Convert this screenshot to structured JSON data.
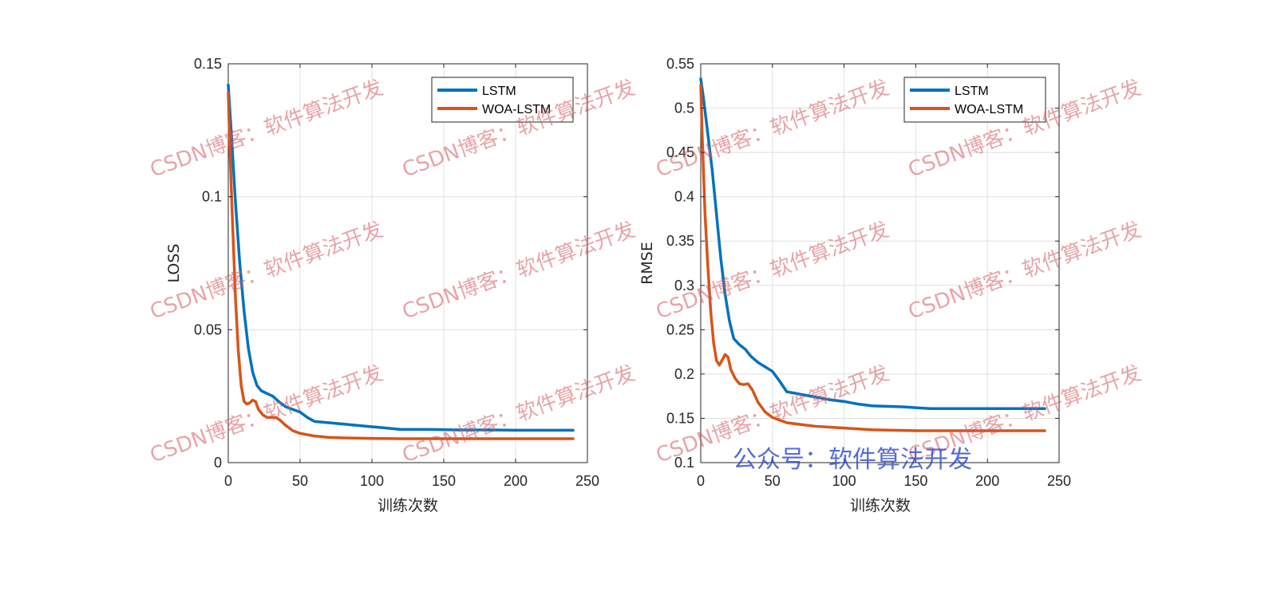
{
  "watermark": {
    "text": "CSDN博客：软件算法开发",
    "footer": "公众号：软件算法开发"
  },
  "colors": {
    "lstm": "#0072BD",
    "woa_lstm": "#D95319",
    "grid": "#dfdfdf",
    "axis": "#262626"
  },
  "chart_data": [
    {
      "type": "line",
      "xlabel": "训练次数",
      "ylabel": "LOSS",
      "xlim": [
        0,
        250
      ],
      "ylim": [
        0,
        0.15
      ],
      "xticks": [
        0,
        50,
        100,
        150,
        200,
        250
      ],
      "yticks": [
        0,
        0.05,
        0.1,
        0.15
      ],
      "xtick_labels": [
        "0",
        "50",
        "100",
        "150",
        "200",
        "250"
      ],
      "ytick_labels": [
        "0",
        "0.05",
        "0.1",
        "0.15"
      ],
      "grid": true,
      "legend_position": "top-right",
      "series": [
        {
          "name": "LSTM",
          "color": "#0072BD",
          "points": [
            [
              0,
              0.142
            ],
            [
              2,
              0.125
            ],
            [
              5,
              0.098
            ],
            [
              8,
              0.075
            ],
            [
              11,
              0.057
            ],
            [
              14,
              0.043
            ],
            [
              17,
              0.034
            ],
            [
              20,
              0.029
            ],
            [
              23,
              0.027
            ],
            [
              27,
              0.026
            ],
            [
              31,
              0.025
            ],
            [
              35,
              0.023
            ],
            [
              40,
              0.021
            ],
            [
              45,
              0.02
            ],
            [
              50,
              0.019
            ],
            [
              55,
              0.017
            ],
            [
              60,
              0.0155
            ],
            [
              70,
              0.015
            ],
            [
              80,
              0.0145
            ],
            [
              90,
              0.014
            ],
            [
              100,
              0.0135
            ],
            [
              110,
              0.013
            ],
            [
              120,
              0.0125
            ],
            [
              140,
              0.0125
            ],
            [
              160,
              0.0123
            ],
            [
              180,
              0.0123
            ],
            [
              200,
              0.0122
            ],
            [
              220,
              0.0122
            ],
            [
              240,
              0.0122
            ]
          ]
        },
        {
          "name": "WOA-LSTM",
          "color": "#D95319",
          "points": [
            [
              0,
              0.139
            ],
            [
              1,
              0.12
            ],
            [
              3,
              0.09
            ],
            [
              5,
              0.062
            ],
            [
              7,
              0.042
            ],
            [
              9,
              0.029
            ],
            [
              11,
              0.023
            ],
            [
              13,
              0.022
            ],
            [
              15,
              0.0225
            ],
            [
              17,
              0.0235
            ],
            [
              19,
              0.023
            ],
            [
              21,
              0.02
            ],
            [
              24,
              0.018
            ],
            [
              27,
              0.017
            ],
            [
              30,
              0.017
            ],
            [
              33,
              0.017
            ],
            [
              36,
              0.016
            ],
            [
              40,
              0.014
            ],
            [
              45,
              0.012
            ],
            [
              50,
              0.011
            ],
            [
              55,
              0.0105
            ],
            [
              60,
              0.01
            ],
            [
              70,
              0.0095
            ],
            [
              80,
              0.0093
            ],
            [
              100,
              0.0091
            ],
            [
              120,
              0.009
            ],
            [
              150,
              0.009
            ],
            [
              180,
              0.009
            ],
            [
              210,
              0.009
            ],
            [
              240,
              0.009
            ]
          ]
        }
      ]
    },
    {
      "type": "line",
      "xlabel": "训练次数",
      "ylabel": "RMSE",
      "xlim": [
        0,
        250
      ],
      "ylim": [
        0.1,
        0.55
      ],
      "xticks": [
        0,
        50,
        100,
        150,
        200,
        250
      ],
      "yticks": [
        0.1,
        0.15,
        0.2,
        0.25,
        0.3,
        0.35,
        0.4,
        0.45,
        0.5,
        0.55
      ],
      "xtick_labels": [
        "0",
        "50",
        "100",
        "150",
        "200",
        "250"
      ],
      "ytick_labels": [
        "0.1",
        "0.15",
        "0.2",
        "0.25",
        "0.3",
        "0.35",
        "0.4",
        "0.45",
        "0.5",
        "0.55"
      ],
      "grid": true,
      "legend_position": "top-right",
      "series": [
        {
          "name": "LSTM",
          "color": "#0072BD",
          "points": [
            [
              0,
              0.533
            ],
            [
              2,
              0.51
            ],
            [
              5,
              0.47
            ],
            [
              8,
              0.43
            ],
            [
              11,
              0.38
            ],
            [
              14,
              0.33
            ],
            [
              17,
              0.29
            ],
            [
              20,
              0.26
            ],
            [
              23,
              0.24
            ],
            [
              27,
              0.233
            ],
            [
              31,
              0.228
            ],
            [
              35,
              0.22
            ],
            [
              40,
              0.213
            ],
            [
              45,
              0.208
            ],
            [
              50,
              0.203
            ],
            [
              55,
              0.192
            ],
            [
              60,
              0.18
            ],
            [
              70,
              0.177
            ],
            [
              80,
              0.174
            ],
            [
              90,
              0.171
            ],
            [
              100,
              0.169
            ],
            [
              110,
              0.166
            ],
            [
              120,
              0.164
            ],
            [
              140,
              0.163
            ],
            [
              160,
              0.161
            ],
            [
              180,
              0.161
            ],
            [
              200,
              0.161
            ],
            [
              220,
              0.161
            ],
            [
              240,
              0.161
            ]
          ]
        },
        {
          "name": "WOA-LSTM",
          "color": "#D95319",
          "points": [
            [
              0,
              0.526
            ],
            [
              1,
              0.47
            ],
            [
              3,
              0.38
            ],
            [
              5,
              0.32
            ],
            [
              7,
              0.27
            ],
            [
              9,
              0.235
            ],
            [
              11,
              0.215
            ],
            [
              13,
              0.21
            ],
            [
              15,
              0.216
            ],
            [
              17,
              0.222
            ],
            [
              19,
              0.219
            ],
            [
              21,
              0.205
            ],
            [
              24,
              0.195
            ],
            [
              27,
              0.189
            ],
            [
              30,
              0.188
            ],
            [
              33,
              0.189
            ],
            [
              36,
              0.182
            ],
            [
              40,
              0.168
            ],
            [
              45,
              0.157
            ],
            [
              50,
              0.151
            ],
            [
              55,
              0.148
            ],
            [
              60,
              0.145
            ],
            [
              70,
              0.143
            ],
            [
              80,
              0.141
            ],
            [
              100,
              0.139
            ],
            [
              120,
              0.137
            ],
            [
              150,
              0.136
            ],
            [
              180,
              0.136
            ],
            [
              210,
              0.136
            ],
            [
              240,
              0.136
            ]
          ]
        }
      ]
    }
  ]
}
